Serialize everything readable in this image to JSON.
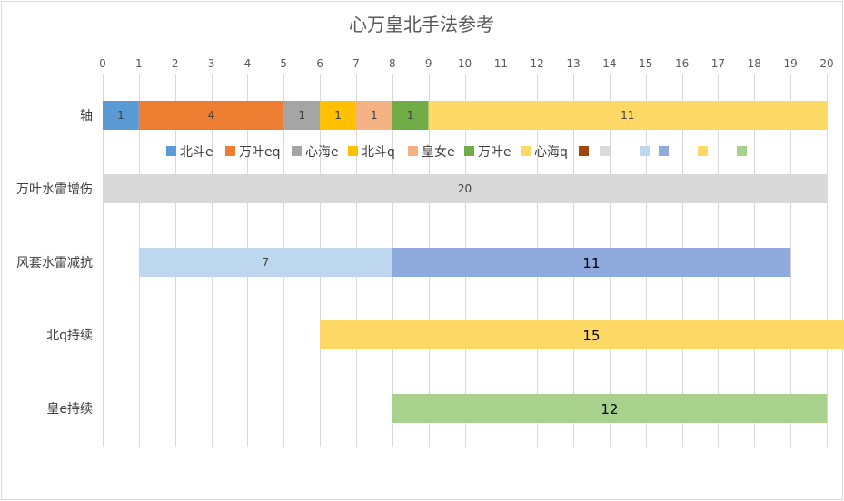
{
  "chart_data": {
    "type": "bar",
    "orientation": "horizontal",
    "stacked": true,
    "title": "心万皇北手法参考",
    "xlim": [
      0,
      20
    ],
    "x_ticks": [
      0,
      1,
      2,
      3,
      4,
      5,
      6,
      7,
      8,
      9,
      10,
      11,
      12,
      13,
      14,
      15,
      16,
      17,
      18,
      19,
      20
    ],
    "grid": true,
    "legend_position": "top (below first bar)",
    "categories": [
      "轴",
      "万叶水雷增伤",
      "风套水雷减抗",
      "北q持续",
      "皇e持续"
    ],
    "rows": [
      {
        "category": "轴",
        "segments": [
          {
            "series": "北斗e",
            "start": 0,
            "value": 1,
            "label": "1",
            "color": "#5b9bd5"
          },
          {
            "series": "万叶eq",
            "start": 1,
            "value": 4,
            "label": "4",
            "color": "#ed7d31"
          },
          {
            "series": "心海e",
            "start": 5,
            "value": 1,
            "label": "1",
            "color": "#a5a5a5"
          },
          {
            "series": "北斗q",
            "start": 6,
            "value": 1,
            "label": "1",
            "color": "#ffc000"
          },
          {
            "series": "皇女e",
            "start": 7,
            "value": 1,
            "label": "1",
            "color": "#f4b183"
          },
          {
            "series": "万叶e",
            "start": 8,
            "value": 1,
            "label": "1",
            "color": "#70ad47"
          },
          {
            "series": "心海q",
            "start": 9,
            "value": 11,
            "label": "11",
            "color": "#ffd966"
          }
        ]
      },
      {
        "category": "万叶水雷增伤",
        "segments": [
          {
            "series": "",
            "start": 0,
            "value": 20,
            "label": "20",
            "color": "#d9d9d9"
          }
        ]
      },
      {
        "category": "风套水雷减抗",
        "segments": [
          {
            "series": "",
            "start": 1,
            "value": 7,
            "label": "7",
            "color": "#bdd7ee"
          },
          {
            "series": "",
            "start": 8,
            "value": 11,
            "label": "11",
            "color": "#8faadc"
          }
        ]
      },
      {
        "category": "北q持续",
        "segments": [
          {
            "series": "",
            "start": 6,
            "value": 15,
            "label": "15",
            "color": "#ffd966"
          }
        ]
      },
      {
        "category": "皇e持续",
        "segments": [
          {
            "series": "",
            "start": 8,
            "value": 12,
            "label": "12",
            "color": "#a9d18e"
          }
        ]
      }
    ],
    "legend": [
      {
        "name": "北斗e",
        "color": "#5b9bd5"
      },
      {
        "name": "万叶eq",
        "color": "#ed7d31"
      },
      {
        "name": "心海e",
        "color": "#a5a5a5"
      },
      {
        "name": "北斗q",
        "color": "#ffc000"
      },
      {
        "name": "皇女e",
        "color": "#f4b183"
      },
      {
        "name": "万叶e",
        "color": "#70ad47"
      },
      {
        "name": "心海q",
        "color": "#ffd966"
      },
      {
        "name": "",
        "color": "#9e480e"
      },
      {
        "name": "",
        "color": "#d9d9d9"
      },
      {
        "name": "",
        "color": "#bdd7ee"
      },
      {
        "name": "",
        "color": "#8faadc"
      },
      {
        "name": "",
        "color": "#ffd966"
      },
      {
        "name": "",
        "color": "#a9d18e"
      }
    ]
  }
}
